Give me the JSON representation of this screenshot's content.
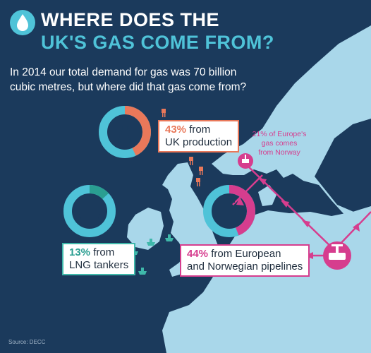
{
  "header": {
    "title_line1": "WHERE DOES THE",
    "title_line2": "UK'S GAS COME FROM?",
    "subtitle_line1": "In 2014 our total demand for gas was 70 billion",
    "subtitle_line2": "cubic metres, but where did that gas come from?"
  },
  "stats": {
    "uk_production": {
      "pct": "43%",
      "rest": " from",
      "line2": "UK production",
      "share": 0.43,
      "color": "#e9785a"
    },
    "lng": {
      "pct": "13%",
      "rest": " from",
      "line2": "LNG tankers",
      "share": 0.13,
      "color": "#3fb8aa"
    },
    "pipelines": {
      "pct": "44%",
      "rest": " from European",
      "line2": "and Norwegian pipelines",
      "share": 0.44,
      "color": "#d63d8e"
    }
  },
  "note": {
    "line1": "21% of Europe's",
    "line2": "gas comes",
    "line3": "from Norway"
  },
  "source": "Source: DECC",
  "colors": {
    "background": "#1b3a5c",
    "land": "#a9d7ea",
    "accent_cyan": "#4fc3d8",
    "accent_magenta": "#d63d8e",
    "accent_orange": "#e9785a",
    "accent_teal": "#3fb8aa"
  },
  "icons": [
    "gas-flame-icon",
    "oil-rig-icon",
    "tanker-ship-icon",
    "pipeline-valve-icon"
  ]
}
